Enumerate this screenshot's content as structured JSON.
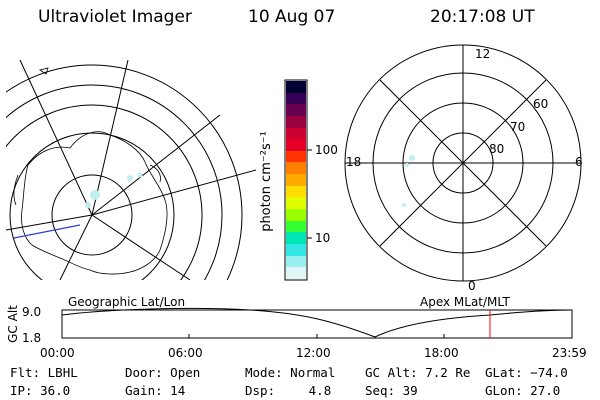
{
  "header": {
    "instrument": "Ultraviolet Imager",
    "date": "10 Aug 07",
    "time": "20:17:08 UT"
  },
  "colorbar": {
    "unit_label": "photon cm⁻²s⁻¹",
    "ticks": [
      "100",
      "10"
    ],
    "colors": [
      "#000033",
      "#330055",
      "#66004d",
      "#99003d",
      "#cc0033",
      "#e60026",
      "#ff3300",
      "#ff8000",
      "#ffaa00",
      "#ffdd00",
      "#ddff00",
      "#99ff00",
      "#33ff33",
      "#00e6b3",
      "#33e6e6",
      "#99f0f0",
      "#e0f5f5"
    ]
  },
  "maps": {
    "left_label": "Geographic Lat/Lon",
    "right_label": "Apex MLat/MLT",
    "polar_labels": {
      "top": "12",
      "bottom": "0",
      "left": "18",
      "right": "6"
    },
    "lat_labels": [
      "60",
      "70",
      "80"
    ]
  },
  "altitude_plot": {
    "ylabel": "GC Alt",
    "ytick_top": "9.0",
    "ytick_bottom": "1.8",
    "xticks": [
      "00:00",
      "06:00",
      "12:00",
      "18:00",
      "23:59"
    ],
    "marker_color": "#ff0000"
  },
  "footer": {
    "row1": [
      {
        "label": "Flt:",
        "value": "LBHL"
      },
      {
        "label": "Door:",
        "value": "Open"
      },
      {
        "label": "Mode:",
        "value": "Normal"
      },
      {
        "label": "GC Alt:",
        "value": "7.2 Re"
      },
      {
        "label": "GLat:",
        "value": "−74.0"
      }
    ],
    "row2": [
      {
        "label": "IP:",
        "value": "36.0"
      },
      {
        "label": "Gain:",
        "value": "14"
      },
      {
        "label": "Dsp:",
        "value": "4.8"
      },
      {
        "label": "Seq:",
        "value": "39"
      },
      {
        "label": "GLon:",
        "value": "27.0"
      }
    ]
  }
}
